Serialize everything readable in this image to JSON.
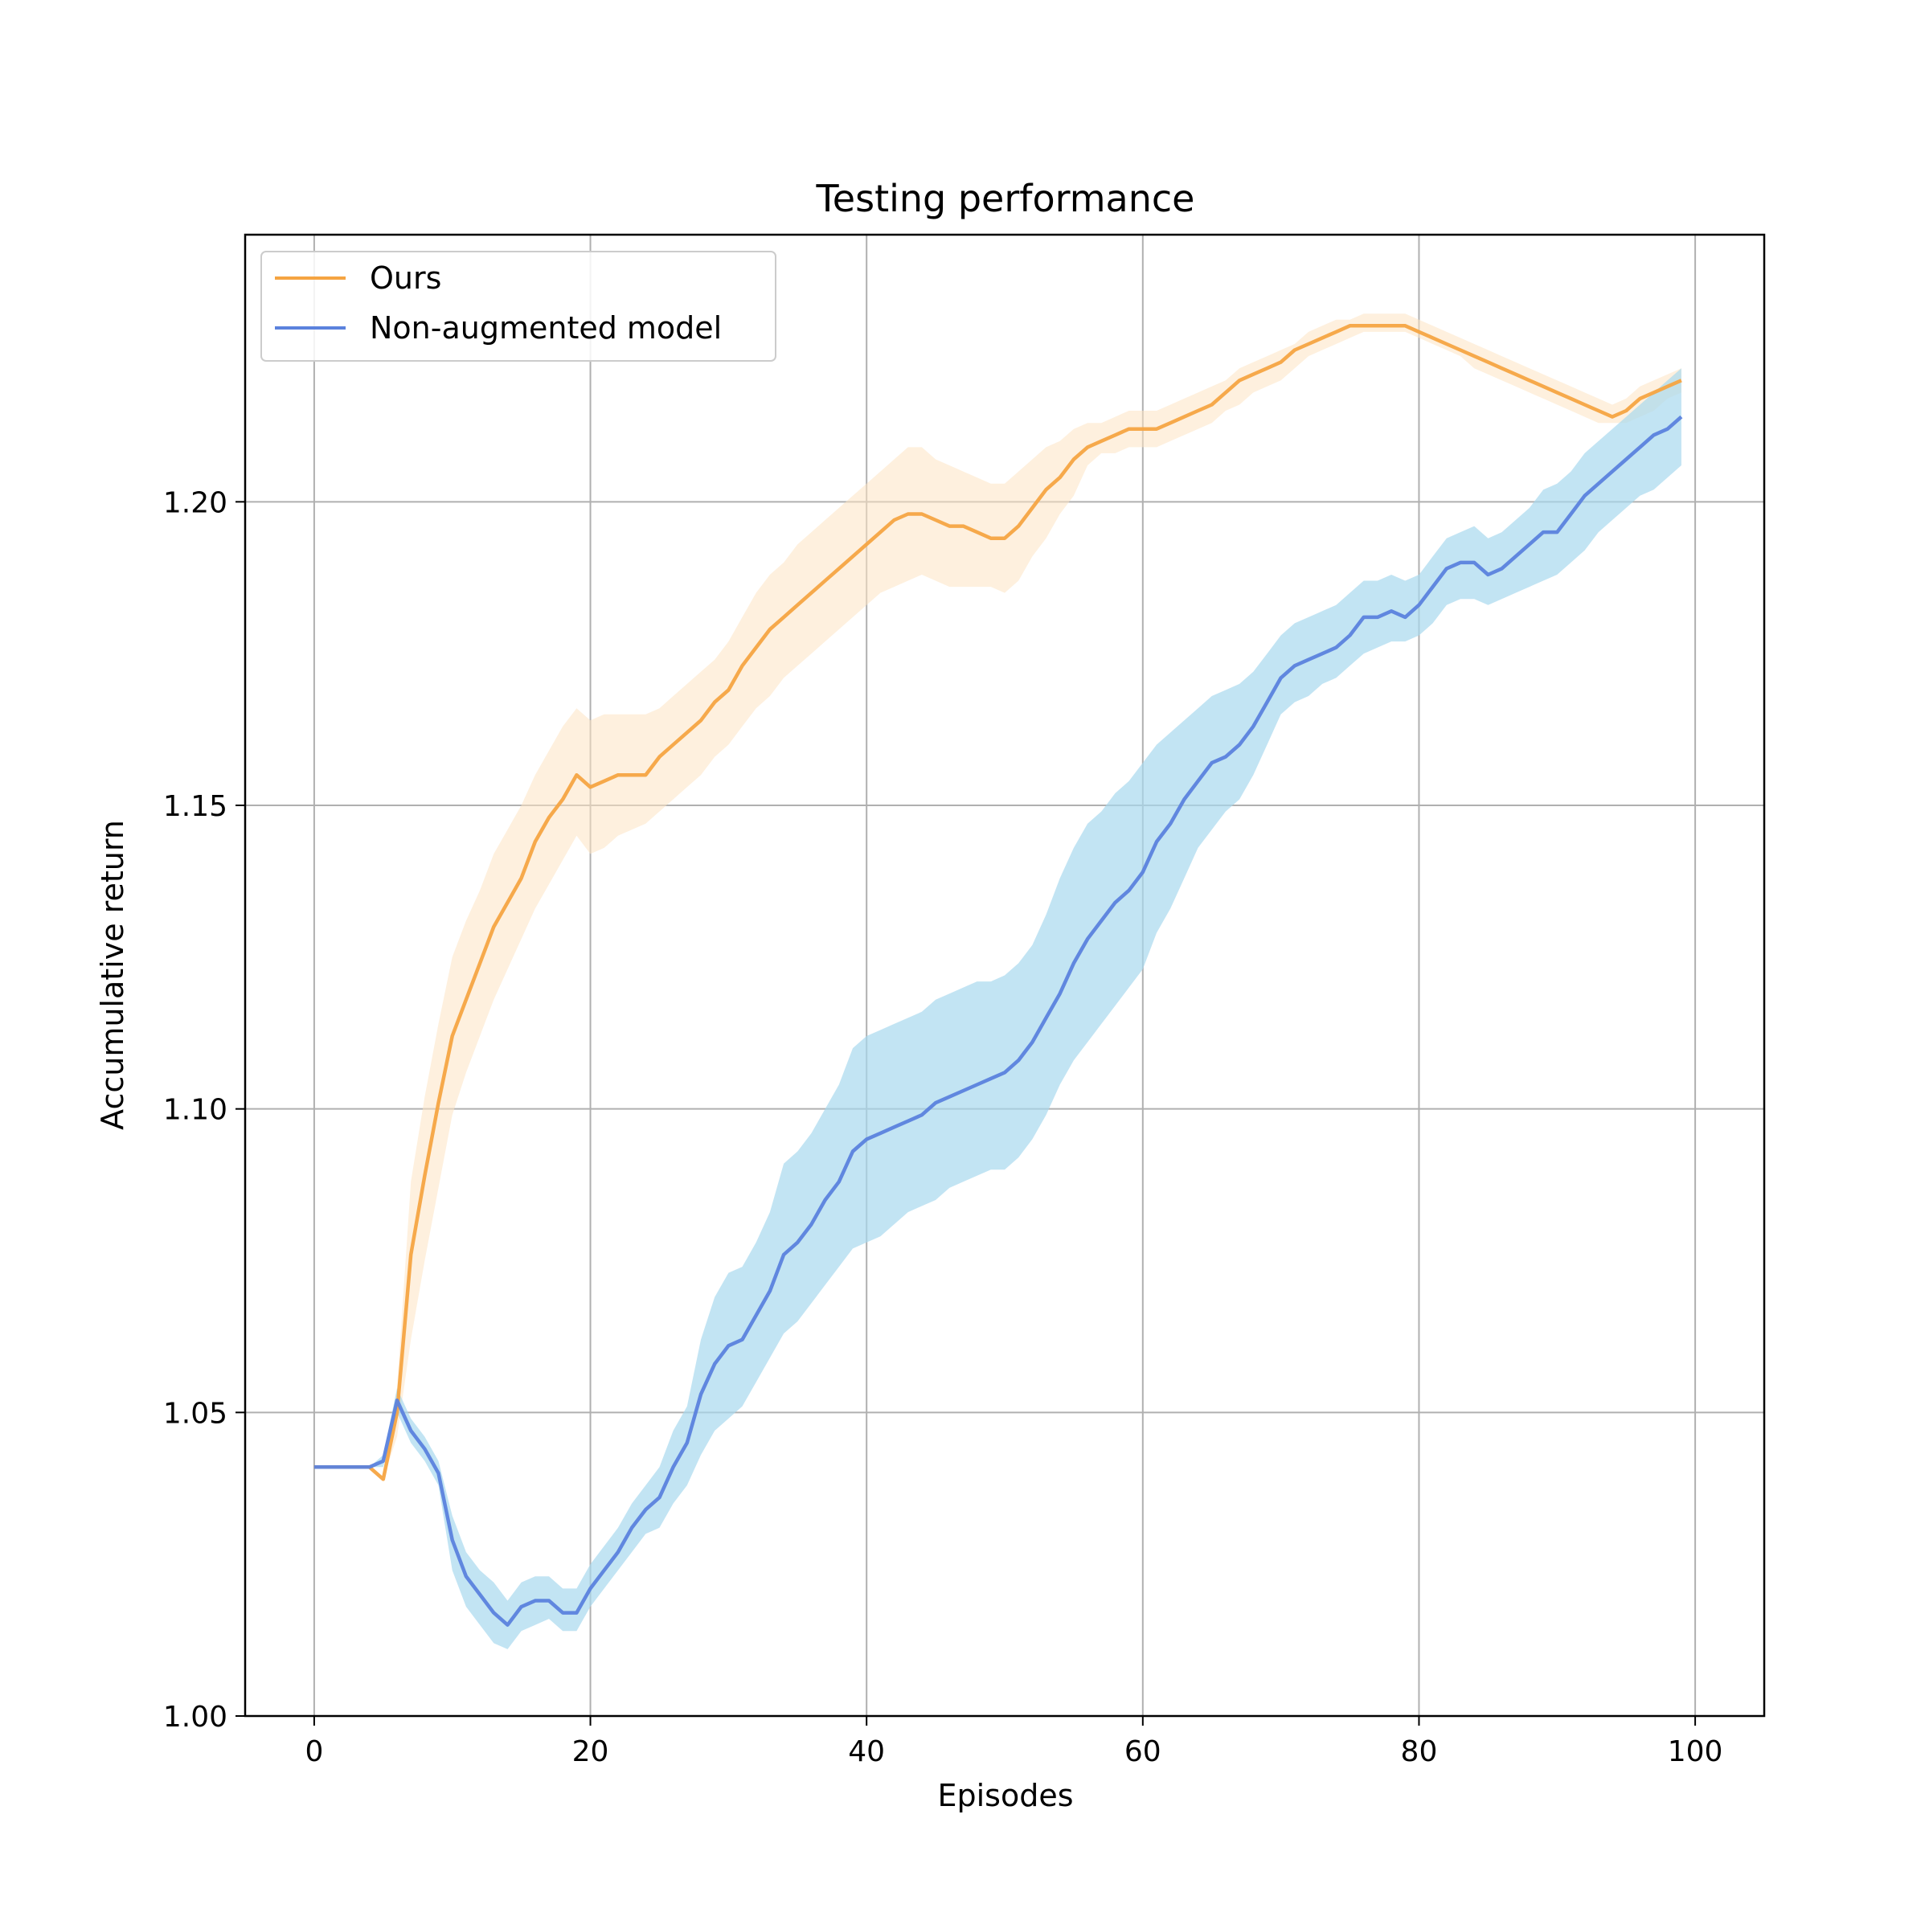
{
  "chart_data": {
    "type": "line",
    "title": "Testing performance",
    "xlabel": "Episodes",
    "ylabel": "Accumulative return",
    "xlim": [
      -5,
      105
    ],
    "ylim": [
      1.0,
      1.244
    ],
    "xticks": [
      0,
      20,
      40,
      60,
      80,
      100
    ],
    "yticks": [
      1.0,
      1.05,
      1.1,
      1.15,
      1.2
    ],
    "xtick_labels": [
      "0",
      "20",
      "40",
      "60",
      "80",
      "100"
    ],
    "ytick_labels": [
      "1.00",
      "1.05",
      "1.10",
      "1.15",
      "1.20"
    ],
    "grid": true,
    "legend": {
      "placement": "upper-left"
    },
    "x": [
      0,
      1,
      2,
      3,
      4,
      5,
      6,
      7,
      8,
      9,
      10,
      11,
      12,
      13,
      14,
      15,
      16,
      17,
      18,
      19,
      20,
      21,
      22,
      23,
      24,
      25,
      26,
      27,
      28,
      29,
      30,
      31,
      32,
      33,
      34,
      35,
      36,
      37,
      38,
      39,
      40,
      41,
      42,
      43,
      44,
      45,
      46,
      47,
      48,
      49,
      50,
      51,
      52,
      53,
      54,
      55,
      56,
      57,
      58,
      59,
      60,
      61,
      62,
      63,
      64,
      65,
      66,
      67,
      68,
      69,
      70,
      71,
      72,
      73,
      74,
      75,
      76,
      77,
      78,
      79,
      80,
      81,
      82,
      83,
      84,
      85,
      86,
      87,
      88,
      89,
      90,
      91,
      92,
      93,
      94,
      95,
      96,
      97,
      98,
      99
    ],
    "series": [
      {
        "name": "Ours",
        "color": "#f5a442",
        "band_color": "#fde3c2",
        "values": [
          1.041,
          1.041,
          1.041,
          1.041,
          1.041,
          1.039,
          1.05,
          1.076,
          1.089,
          1.101,
          1.112,
          1.118,
          1.124,
          1.13,
          1.134,
          1.138,
          1.144,
          1.148,
          1.151,
          1.155,
          1.153,
          1.154,
          1.155,
          1.155,
          1.155,
          1.158,
          1.16,
          1.162,
          1.164,
          1.167,
          1.169,
          1.173,
          1.176,
          1.179,
          1.181,
          1.183,
          1.185,
          1.187,
          1.189,
          1.191,
          1.193,
          1.195,
          1.197,
          1.198,
          1.198,
          1.197,
          1.196,
          1.196,
          1.195,
          1.194,
          1.194,
          1.196,
          1.199,
          1.202,
          1.204,
          1.207,
          1.209,
          1.21,
          1.211,
          1.212,
          1.212,
          1.212,
          1.213,
          1.214,
          1.215,
          1.216,
          1.218,
          1.22,
          1.221,
          1.222,
          1.223,
          1.225,
          1.226,
          1.227,
          1.228,
          1.229,
          1.229,
          1.229,
          1.229,
          1.229,
          1.228,
          1.227,
          1.226,
          1.225,
          1.224,
          1.223,
          1.222,
          1.221,
          1.22,
          1.219,
          1.218,
          1.217,
          1.216,
          1.215,
          1.214,
          1.215,
          1.217,
          1.218,
          1.219,
          1.22
        ],
        "lower": [
          1.041,
          1.041,
          1.041,
          1.041,
          1.041,
          1.039,
          1.046,
          1.062,
          1.075,
          1.087,
          1.099,
          1.106,
          1.112,
          1.118,
          1.123,
          1.128,
          1.133,
          1.137,
          1.141,
          1.145,
          1.142,
          1.143,
          1.145,
          1.146,
          1.147,
          1.149,
          1.151,
          1.153,
          1.155,
          1.158,
          1.16,
          1.163,
          1.166,
          1.168,
          1.171,
          1.173,
          1.175,
          1.177,
          1.179,
          1.181,
          1.183,
          1.185,
          1.186,
          1.187,
          1.188,
          1.187,
          1.186,
          1.186,
          1.186,
          1.186,
          1.185,
          1.187,
          1.191,
          1.194,
          1.198,
          1.201,
          1.206,
          1.208,
          1.208,
          1.209,
          1.209,
          1.209,
          1.21,
          1.211,
          1.212,
          1.213,
          1.215,
          1.216,
          1.218,
          1.219,
          1.22,
          1.222,
          1.224,
          1.225,
          1.226,
          1.227,
          1.228,
          1.228,
          1.228,
          1.228,
          1.227,
          1.226,
          1.225,
          1.224,
          1.222,
          1.221,
          1.22,
          1.219,
          1.218,
          1.217,
          1.216,
          1.215,
          1.214,
          1.213,
          1.213,
          1.213,
          1.214,
          1.215,
          1.217,
          1.218
        ],
        "upper": [
          1.041,
          1.041,
          1.041,
          1.041,
          1.041,
          1.039,
          1.054,
          1.088,
          1.102,
          1.114,
          1.125,
          1.131,
          1.136,
          1.142,
          1.146,
          1.15,
          1.155,
          1.159,
          1.163,
          1.166,
          1.164,
          1.165,
          1.165,
          1.165,
          1.165,
          1.166,
          1.168,
          1.17,
          1.172,
          1.174,
          1.177,
          1.181,
          1.185,
          1.188,
          1.19,
          1.193,
          1.195,
          1.197,
          1.199,
          1.201,
          1.203,
          1.205,
          1.207,
          1.209,
          1.209,
          1.207,
          1.206,
          1.205,
          1.204,
          1.203,
          1.203,
          1.205,
          1.207,
          1.209,
          1.21,
          1.212,
          1.213,
          1.213,
          1.214,
          1.215,
          1.215,
          1.215,
          1.216,
          1.217,
          1.218,
          1.219,
          1.22,
          1.222,
          1.223,
          1.224,
          1.225,
          1.226,
          1.228,
          1.229,
          1.23,
          1.23,
          1.231,
          1.231,
          1.231,
          1.231,
          1.23,
          1.229,
          1.228,
          1.227,
          1.226,
          1.225,
          1.224,
          1.223,
          1.222,
          1.221,
          1.22,
          1.219,
          1.218,
          1.217,
          1.216,
          1.217,
          1.219,
          1.22,
          1.221,
          1.222
        ]
      },
      {
        "name": "Non-augmented model",
        "color": "#5b82dd",
        "band_color": "#a8d8ee",
        "values": [
          1.041,
          1.041,
          1.041,
          1.041,
          1.041,
          1.042,
          1.052,
          1.047,
          1.044,
          1.04,
          1.029,
          1.023,
          1.02,
          1.017,
          1.015,
          1.018,
          1.019,
          1.019,
          1.017,
          1.017,
          1.021,
          1.024,
          1.027,
          1.031,
          1.034,
          1.036,
          1.041,
          1.045,
          1.053,
          1.058,
          1.061,
          1.062,
          1.066,
          1.07,
          1.076,
          1.078,
          1.081,
          1.085,
          1.088,
          1.093,
          1.095,
          1.096,
          1.097,
          1.098,
          1.099,
          1.101,
          1.102,
          1.103,
          1.104,
          1.105,
          1.106,
          1.108,
          1.111,
          1.115,
          1.119,
          1.124,
          1.128,
          1.131,
          1.134,
          1.136,
          1.139,
          1.144,
          1.147,
          1.151,
          1.154,
          1.157,
          1.158,
          1.16,
          1.163,
          1.167,
          1.171,
          1.173,
          1.174,
          1.175,
          1.176,
          1.178,
          1.181,
          1.181,
          1.182,
          1.181,
          1.183,
          1.186,
          1.189,
          1.19,
          1.19,
          1.188,
          1.189,
          1.191,
          1.193,
          1.195,
          1.195,
          1.198,
          1.201,
          1.203,
          1.205,
          1.207,
          1.209,
          1.211,
          1.212,
          1.214
        ],
        "lower": [
          1.041,
          1.041,
          1.041,
          1.041,
          1.041,
          1.041,
          1.05,
          1.045,
          1.042,
          1.038,
          1.024,
          1.018,
          1.015,
          1.012,
          1.011,
          1.014,
          1.015,
          1.016,
          1.014,
          1.014,
          1.018,
          1.021,
          1.024,
          1.027,
          1.03,
          1.031,
          1.035,
          1.038,
          1.043,
          1.047,
          1.049,
          1.051,
          1.055,
          1.059,
          1.063,
          1.065,
          1.068,
          1.071,
          1.074,
          1.077,
          1.078,
          1.079,
          1.081,
          1.083,
          1.084,
          1.085,
          1.087,
          1.088,
          1.089,
          1.09,
          1.09,
          1.092,
          1.095,
          1.099,
          1.104,
          1.108,
          1.111,
          1.114,
          1.117,
          1.12,
          1.123,
          1.129,
          1.133,
          1.138,
          1.143,
          1.146,
          1.149,
          1.151,
          1.155,
          1.16,
          1.165,
          1.167,
          1.168,
          1.17,
          1.171,
          1.173,
          1.175,
          1.176,
          1.177,
          1.177,
          1.178,
          1.18,
          1.183,
          1.184,
          1.184,
          1.183,
          1.184,
          1.185,
          1.186,
          1.187,
          1.188,
          1.19,
          1.192,
          1.195,
          1.197,
          1.199,
          1.201,
          1.202,
          1.204,
          1.206
        ],
        "upper": [
          1.041,
          1.041,
          1.041,
          1.041,
          1.041,
          1.043,
          1.054,
          1.049,
          1.046,
          1.042,
          1.033,
          1.027,
          1.024,
          1.022,
          1.019,
          1.022,
          1.023,
          1.023,
          1.021,
          1.021,
          1.025,
          1.028,
          1.031,
          1.035,
          1.038,
          1.041,
          1.047,
          1.051,
          1.062,
          1.069,
          1.073,
          1.074,
          1.078,
          1.083,
          1.091,
          1.093,
          1.096,
          1.1,
          1.104,
          1.11,
          1.112,
          1.113,
          1.114,
          1.115,
          1.116,
          1.118,
          1.119,
          1.12,
          1.121,
          1.121,
          1.122,
          1.124,
          1.127,
          1.132,
          1.138,
          1.143,
          1.147,
          1.149,
          1.152,
          1.154,
          1.157,
          1.16,
          1.162,
          1.164,
          1.166,
          1.168,
          1.169,
          1.17,
          1.172,
          1.175,
          1.178,
          1.18,
          1.181,
          1.182,
          1.183,
          1.185,
          1.187,
          1.187,
          1.188,
          1.187,
          1.188,
          1.191,
          1.194,
          1.195,
          1.196,
          1.194,
          1.195,
          1.197,
          1.199,
          1.202,
          1.203,
          1.205,
          1.208,
          1.21,
          1.212,
          1.214,
          1.216,
          1.218,
          1.22,
          1.222
        ]
      }
    ]
  }
}
